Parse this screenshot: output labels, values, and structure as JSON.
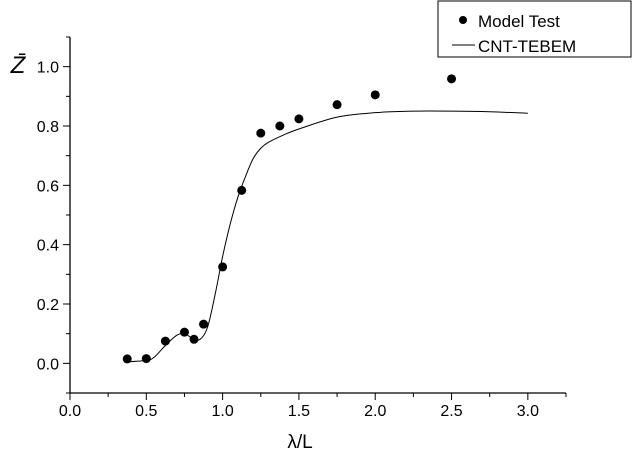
{
  "chart_data": {
    "type": "scatter",
    "title": "",
    "xlabel": "λ/L",
    "ylabel": "Z̄",
    "xlim": [
      0.0,
      3.25
    ],
    "ylim": [
      -0.1,
      1.1
    ],
    "xticks": [
      "0.0",
      "0.5",
      "1.0",
      "1.5",
      "2.0",
      "2.5",
      "3.0"
    ],
    "xtick_values": [
      0.0,
      0.5,
      1.0,
      1.5,
      2.0,
      2.5,
      3.0
    ],
    "yticks": [
      "0.0",
      "0.2",
      "0.4",
      "0.6",
      "0.8",
      "1.0"
    ],
    "ytick_values": [
      0.0,
      0.2,
      0.4,
      0.6,
      0.8,
      1.0
    ],
    "grid": false,
    "legend_position": "top-right",
    "series": [
      {
        "name": "Model Test",
        "kind": "scatter",
        "x": [
          0.375,
          0.5,
          0.625,
          0.75,
          0.8125,
          0.875,
          1.0,
          1.125,
          1.25,
          1.375,
          1.5,
          1.75,
          2.0,
          2.5
        ],
        "y": [
          0.015,
          0.016,
          0.075,
          0.105,
          0.081,
          0.132,
          0.325,
          0.583,
          0.776,
          0.8,
          0.824,
          0.872,
          0.905,
          0.959
        ]
      },
      {
        "name": "CNT-TEBEM",
        "kind": "line",
        "x": [
          0.375,
          0.5,
          0.55,
          0.625,
          0.7,
          0.75,
          0.8,
          0.85,
          0.9,
          0.95,
          1.0,
          1.05,
          1.1,
          1.15,
          1.2,
          1.25,
          1.3,
          1.4,
          1.5,
          1.75,
          2.0,
          2.25,
          2.5,
          2.75,
          3.0
        ],
        "y": [
          0.005,
          0.01,
          0.02,
          0.06,
          0.095,
          0.1,
          0.085,
          0.08,
          0.12,
          0.23,
          0.36,
          0.47,
          0.56,
          0.63,
          0.69,
          0.725,
          0.745,
          0.77,
          0.79,
          0.83,
          0.845,
          0.85,
          0.85,
          0.848,
          0.843
        ]
      }
    ]
  }
}
